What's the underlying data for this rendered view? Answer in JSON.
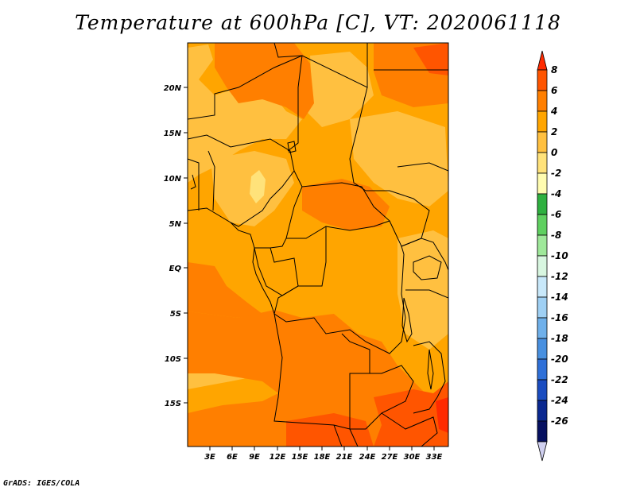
{
  "title": "Temperature at 600hPa [C], VT: 2020061118",
  "credit": "GrADS: IGES/COLA",
  "map": {
    "lat_labels": [
      "20N",
      "15N",
      "10N",
      "5N",
      "EQ",
      "5S",
      "10S",
      "15S"
    ],
    "lon_labels": [
      "3E",
      "6E",
      "9E",
      "12E",
      "15E",
      "18E",
      "21E",
      "24E",
      "27E",
      "30E",
      "33E"
    ]
  },
  "colorbar": {
    "labels": [
      "8",
      "6",
      "4",
      "2",
      "0",
      "-2",
      "-4",
      "-6",
      "-8",
      "-10",
      "-12",
      "-14",
      "-16",
      "-18",
      "-20",
      "-22",
      "-24",
      "-26"
    ],
    "colors": [
      "#ff2a00",
      "#ff5500",
      "#ff7f00",
      "#ffa500",
      "#ffc040",
      "#ffe27a",
      "#fffcb0",
      "#2fb040",
      "#5fd060",
      "#9fe89a",
      "#d8f6e0",
      "#c8e8fa",
      "#9fd0f4",
      "#6fb0ea",
      "#4890e0",
      "#2f70d8",
      "#1a4cc0",
      "#0a2890",
      "#061060",
      "#d0d0f0"
    ]
  }
}
